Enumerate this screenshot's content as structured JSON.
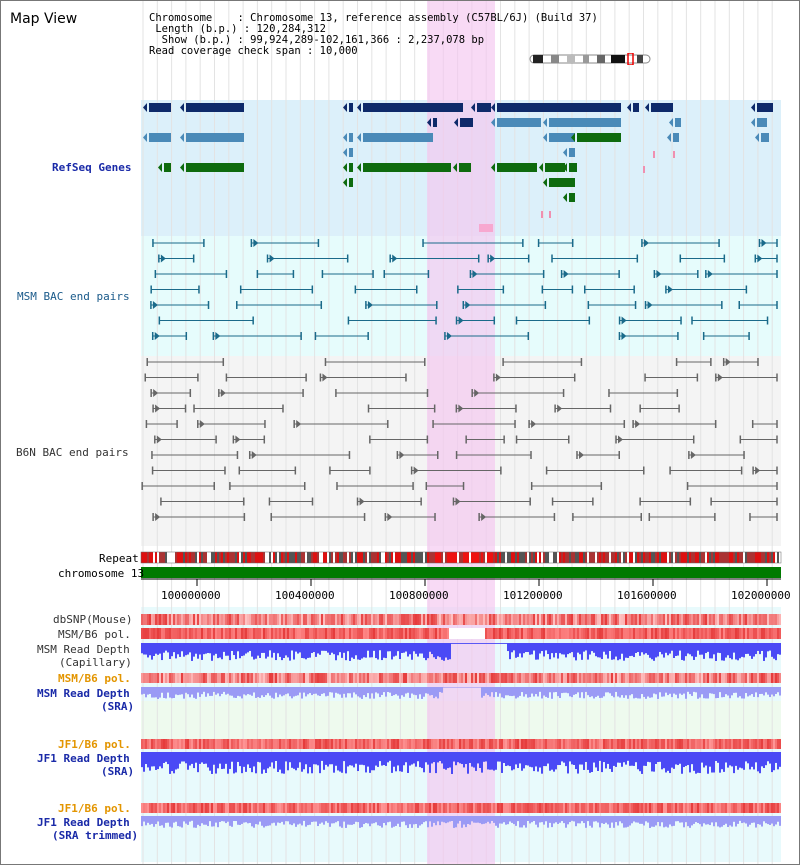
{
  "header": {
    "view_title": "Map View",
    "chromosome_line": "Chromosome    : Chromosome 13, reference assembly (C57BL/6J) (Build 37)",
    "length_line": " Length (b.p.) : 120,284,312",
    "show_line": "  Show (b.p.) : 99,924,289-102,161,366 : 2,237,078 bp",
    "coverage_line": "Read coverage check span : 10,000"
  },
  "tracks": {
    "refseq": "RefSeq Genes",
    "msm_bac": "MSM BAC end pairs",
    "b6n_bac": "B6N BAC end pairs",
    "repeat": "Repeat",
    "chromosome": "chromosome 13",
    "dbsnp": "dbSNP(Mouse)",
    "msm_b6_pol_1": "MSM/B6 pol.",
    "msm_depth_cap_1": "MSM Read Depth",
    "msm_depth_cap_2": "(Capillary)",
    "msm_b6_pol_2": "MSM/B6 pol.",
    "msm_depth_sra_1": "MSM Read Depth",
    "msm_depth_sra_2": "(SRA)",
    "jf1_b6_pol_1": "JF1/B6 pol.",
    "jf1_depth_sra_1": "JF1 Read Depth",
    "jf1_depth_sra_2": "(SRA)",
    "jf1_b6_pol_2": "JF1/B6 pol.",
    "jf1_depth_trim_1": "JF1 Read Depth",
    "jf1_depth_trim_2": "(SRA trimmed)"
  },
  "axis": {
    "ticks": [
      "100000000",
      "100400000",
      "100800000",
      "101200000",
      "101600000",
      "102000000"
    ]
  },
  "colors": {
    "refseq_bg": "#dcf0fa",
    "bac_bg": "#e6fcfc",
    "b6n_bg": "#f4f4f4",
    "highlight": "#f5c6f0",
    "gene_dark": "#0e2a6a",
    "gene_mid": "#4a8ab8",
    "gene_green": "#0e6b0e",
    "chrom_green": "#007a00",
    "depth_blue": "#4a4af5",
    "depth_light": "#9a9af5"
  }
}
